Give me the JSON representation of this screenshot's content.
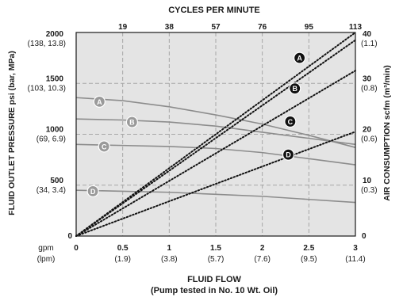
{
  "chart_data": {
    "type": "line",
    "top_title": "CYCLES PER MINUTE",
    "xlabel": "FLUID FLOW",
    "xlabel_note": "(Pump tested in No. 10 Wt. Oil)",
    "ylabel_left": "FLUID OUTLET PRESSURE psi (bar, MPa)",
    "ylabel_right": "AIR CONSUMPTION scfm (m³/min)",
    "x_unit_primary": "gpm",
    "x_unit_secondary": "(lpm)",
    "xlim": [
      0,
      3
    ],
    "ylim_left": [
      0,
      2000
    ],
    "ylim_right": [
      0,
      40
    ],
    "x_ticks": [
      {
        "value": 0,
        "label": "0",
        "sub": ""
      },
      {
        "value": 0.5,
        "label": "0.5",
        "sub": "(1.9)"
      },
      {
        "value": 1,
        "label": "1",
        "sub": "(3.8)"
      },
      {
        "value": 1.5,
        "label": "1.5",
        "sub": "(5.7)"
      },
      {
        "value": 2,
        "label": "2",
        "sub": "(7.6)"
      },
      {
        "value": 2.5,
        "label": "2.5",
        "sub": "(9.5)"
      },
      {
        "value": 3,
        "label": "3",
        "sub": "(11.4)"
      }
    ],
    "top_ticks": [
      {
        "value": 0.5,
        "label": "19"
      },
      {
        "value": 1,
        "label": "38"
      },
      {
        "value": 1.5,
        "label": "57"
      },
      {
        "value": 2,
        "label": "76"
      },
      {
        "value": 2.5,
        "label": "95"
      },
      {
        "value": 3,
        "label": "113"
      }
    ],
    "left_ticks": [
      {
        "value": 0,
        "label": "0",
        "sub": ""
      },
      {
        "value": 500,
        "label": "500",
        "sub": "(34, 3.4)"
      },
      {
        "value": 1000,
        "label": "1000",
        "sub": "(69, 6.9)"
      },
      {
        "value": 1500,
        "label": "1500",
        "sub": "(103, 10.3)"
      },
      {
        "value": 2000,
        "label": "2000",
        "sub": "(138, 13.8)"
      }
    ],
    "right_ticks": [
      {
        "value": 0,
        "label": "0",
        "sub": ""
      },
      {
        "value": 10,
        "label": "10",
        "sub": "(0.3)"
      },
      {
        "value": 20,
        "label": "20",
        "sub": "(0.6)"
      },
      {
        "value": 30,
        "label": "30",
        "sub": "(0.8)"
      },
      {
        "value": 40,
        "label": "40",
        "sub": "(1.1)"
      }
    ],
    "grid_x": [
      0.5,
      1,
      1.5,
      2,
      2.5
    ],
    "grid_y": [
      500,
      1000,
      1500
    ],
    "colors": {
      "background": "#e4e4e4",
      "grid": "#a6a6a6",
      "pressure_line": "#8c8c8c",
      "pressure_marker": "#9a9a9a",
      "air_line": "#111111",
      "air_marker": "#111111",
      "text": "#1a1a1a"
    },
    "pressure_series": [
      {
        "name": "A",
        "x": [
          0,
          0.5,
          1,
          1.5,
          2,
          2.5,
          3
        ],
        "y": [
          1360,
          1330,
          1270,
          1190,
          1100,
          990,
          870
        ],
        "marker": [
          0.25,
          1320
        ]
      },
      {
        "name": "B",
        "x": [
          0,
          0.5,
          1,
          1.5,
          2,
          2.5,
          3
        ],
        "y": [
          1150,
          1140,
          1120,
          1080,
          1020,
          960,
          900
        ],
        "marker": [
          0.6,
          1120
        ]
      },
      {
        "name": "C",
        "x": [
          0,
          0.5,
          1,
          1.5,
          2,
          2.5,
          3
        ],
        "y": [
          900,
          890,
          880,
          860,
          820,
          760,
          700
        ],
        "marker": [
          0.3,
          880
        ]
      },
      {
        "name": "D",
        "x": [
          0,
          0.5,
          1,
          1.5,
          2,
          2.5,
          3
        ],
        "y": [
          450,
          440,
          430,
          410,
          390,
          360,
          330
        ],
        "marker": [
          0.18,
          440
        ]
      }
    ],
    "air_series": [
      {
        "name": "A",
        "x": [
          0,
          3
        ],
        "y": [
          0,
          40
        ],
        "marker": [
          2.4,
          35
        ]
      },
      {
        "name": "B",
        "x": [
          0,
          3
        ],
        "y": [
          0,
          38.5
        ],
        "marker": [
          2.35,
          29
        ]
      },
      {
        "name": "C",
        "x": [
          0,
          3
        ],
        "y": [
          0,
          32.5
        ],
        "marker": [
          2.3,
          22.5
        ]
      },
      {
        "name": "D",
        "x": [
          0,
          3
        ],
        "y": [
          0,
          20.5
        ],
        "marker": [
          2.28,
          16
        ]
      }
    ]
  }
}
